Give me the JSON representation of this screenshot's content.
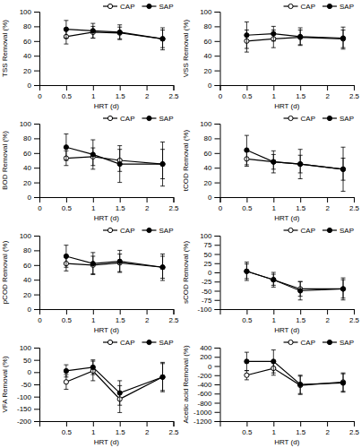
{
  "chart_data": [
    {
      "type": "line",
      "xlabel": "HRT (d)",
      "ylabel": "TSS Removal (%)",
      "x": [
        0.5,
        1.0,
        1.5,
        2.3
      ],
      "xlim": [
        0,
        2.5
      ],
      "xticks": [
        0,
        0.5,
        1,
        1.5,
        2,
        2.5
      ],
      "ylim": [
        0,
        100
      ],
      "yticks": [
        0,
        20,
        40,
        60,
        80,
        100
      ],
      "grid": false,
      "legend": "upper right",
      "series": [
        {
          "name": "CAP",
          "color": "black",
          "marker": "circle-open",
          "line_style": "solid",
          "values": [
            66,
            72,
            71,
            63
          ],
          "errors": [
            10,
            8,
            8,
            15
          ]
        },
        {
          "name": "SAP",
          "color": "black",
          "marker": "circle",
          "line_style": "solid",
          "values": [
            76,
            74,
            72,
            63
          ],
          "errors": [
            12,
            10,
            10,
            12
          ]
        }
      ]
    },
    {
      "type": "line",
      "xlabel": "HRT (d)",
      "ylabel": "VSS Removal (%)",
      "x": [
        0.5,
        1.0,
        1.5,
        2.3
      ],
      "xlim": [
        0,
        2.5
      ],
      "xticks": [
        0,
        0.5,
        1,
        1.5,
        2,
        2.5
      ],
      "ylim": [
        0,
        100
      ],
      "yticks": [
        0,
        20,
        40,
        60,
        80,
        100
      ],
      "grid": false,
      "legend": "upper right",
      "series": [
        {
          "name": "CAP",
          "color": "black",
          "marker": "circle-open",
          "line_style": "solid",
          "values": [
            60,
            63,
            65,
            63
          ],
          "errors": [
            15,
            12,
            10,
            12
          ]
        },
        {
          "name": "SAP",
          "color": "black",
          "marker": "circle",
          "line_style": "solid",
          "values": [
            68,
            70,
            66,
            64
          ],
          "errors": [
            18,
            10,
            12,
            15
          ]
        }
      ]
    },
    {
      "type": "line",
      "xlabel": "HRT (d)",
      "ylabel": "BOD Removal (%)",
      "x": [
        0.5,
        1.0,
        1.5,
        2.3
      ],
      "xlim": [
        0,
        2.5
      ],
      "xticks": [
        0,
        0.5,
        1,
        1.5,
        2,
        2.5
      ],
      "ylim": [
        0,
        100
      ],
      "yticks": [
        0,
        20,
        40,
        60,
        80,
        100
      ],
      "grid": false,
      "legend": "upper right",
      "series": [
        {
          "name": "CAP",
          "color": "black",
          "marker": "circle-open",
          "line_style": "solid",
          "values": [
            53,
            55,
            50,
            45
          ],
          "errors": [
            10,
            12,
            15,
            20
          ]
        },
        {
          "name": "SAP",
          "color": "black",
          "marker": "circle",
          "line_style": "solid",
          "values": [
            68,
            58,
            45,
            45
          ],
          "errors": [
            18,
            20,
            25,
            30
          ]
        }
      ]
    },
    {
      "type": "line",
      "xlabel": "HRT (d)",
      "ylabel": "tCOD Removal (%)",
      "x": [
        0.5,
        1.0,
        1.5,
        2.3
      ],
      "xlim": [
        0,
        2.5
      ],
      "xticks": [
        0,
        0.5,
        1,
        1.5,
        2,
        2.5
      ],
      "ylim": [
        0,
        100
      ],
      "yticks": [
        0,
        20,
        40,
        60,
        80,
        100
      ],
      "grid": false,
      "legend": "upper right",
      "series": [
        {
          "name": "CAP",
          "color": "black",
          "marker": "circle-open",
          "line_style": "solid",
          "values": [
            52,
            48,
            45,
            38
          ],
          "errors": [
            10,
            10,
            12,
            15
          ]
        },
        {
          "name": "SAP",
          "color": "black",
          "marker": "circle",
          "line_style": "solid",
          "values": [
            64,
            48,
            45,
            38
          ],
          "errors": [
            20,
            15,
            20,
            30
          ]
        }
      ]
    },
    {
      "type": "line",
      "xlabel": "HRT (d)",
      "ylabel": "pCOD Removal (%)",
      "x": [
        0.5,
        1.0,
        1.5,
        2.3
      ],
      "xlim": [
        0,
        2.5
      ],
      "xticks": [
        0,
        0.5,
        1,
        1.5,
        2,
        2.5
      ],
      "ylim": [
        0,
        100
      ],
      "yticks": [
        0,
        20,
        40,
        60,
        80,
        100
      ],
      "grid": false,
      "legend": "upper right",
      "series": [
        {
          "name": "CAP",
          "color": "black",
          "marker": "circle-open",
          "line_style": "solid",
          "values": [
            62,
            60,
            63,
            57
          ],
          "errors": [
            10,
            12,
            12,
            15
          ]
        },
        {
          "name": "SAP",
          "color": "black",
          "marker": "circle",
          "line_style": "solid",
          "values": [
            72,
            62,
            65,
            57
          ],
          "errors": [
            15,
            15,
            15,
            18
          ]
        }
      ]
    },
    {
      "type": "line",
      "xlabel": "HRT (d)",
      "ylabel": "sCOD Removal (%)",
      "x": [
        0.5,
        1.0,
        1.5,
        2.3
      ],
      "xlim": [
        0,
        2.5
      ],
      "xticks": [
        0.5,
        1,
        1.5,
        2,
        2.5
      ],
      "ylim": [
        -100,
        100
      ],
      "yticks": [
        -100,
        -75,
        -50,
        -25,
        0,
        25,
        50,
        75,
        100
      ],
      "grid": false,
      "legend": "upper right",
      "series": [
        {
          "name": "CAP",
          "color": "black",
          "marker": "circle-open",
          "line_style": "solid",
          "values": [
            3,
            -20,
            -45,
            -45
          ],
          "errors": [
            20,
            15,
            20,
            25
          ]
        },
        {
          "name": "SAP",
          "color": "black",
          "marker": "circle",
          "line_style": "solid",
          "values": [
            3,
            -20,
            -50,
            -45
          ],
          "errors": [
            25,
            20,
            25,
            30
          ]
        }
      ]
    },
    {
      "type": "line",
      "xlabel": "HRT (d)",
      "ylabel": "VFA Removal (%)",
      "x": [
        0.5,
        1.0,
        1.5,
        2.3
      ],
      "xlim": [
        0,
        2.5
      ],
      "xticks": [
        0.5,
        1,
        1.5,
        2,
        2.5
      ],
      "ylim": [
        -200,
        100
      ],
      "yticks": [
        -200,
        -150,
        -100,
        -50,
        0,
        50,
        100
      ],
      "grid": false,
      "legend": "upper right",
      "series": [
        {
          "name": "CAP",
          "color": "black",
          "marker": "circle-open",
          "line_style": "solid",
          "values": [
            -40,
            5,
            -110,
            -20
          ],
          "errors": [
            30,
            40,
            55,
            55
          ]
        },
        {
          "name": "SAP",
          "color": "black",
          "marker": "circle",
          "line_style": "solid",
          "values": [
            5,
            20,
            -85,
            -20
          ],
          "errors": [
            25,
            30,
            50,
            60
          ]
        }
      ]
    },
    {
      "type": "line",
      "xlabel": "HRT (d)",
      "ylabel": "Acetic acid Removal (%)",
      "x": [
        0.5,
        1.0,
        1.5,
        2.3
      ],
      "xlim": [
        0,
        2.5
      ],
      "xticks": [
        0.5,
        1,
        1.5,
        2,
        2.5
      ],
      "ylim": [
        -1200,
        400
      ],
      "yticks": [
        -1200,
        -1000,
        -800,
        -600,
        -400,
        -200,
        0,
        200,
        400
      ],
      "grid": false,
      "legend": "upper right",
      "series": [
        {
          "name": "CAP",
          "color": "black",
          "marker": "circle-open",
          "line_style": "solid",
          "values": [
            -200,
            -50,
            -420,
            -350
          ],
          "errors": [
            100,
            150,
            200,
            200
          ]
        },
        {
          "name": "SAP",
          "color": "black",
          "marker": "circle",
          "line_style": "solid",
          "values": [
            100,
            100,
            -400,
            -370
          ],
          "errors": [
            200,
            250,
            200,
            200
          ]
        }
      ]
    }
  ]
}
